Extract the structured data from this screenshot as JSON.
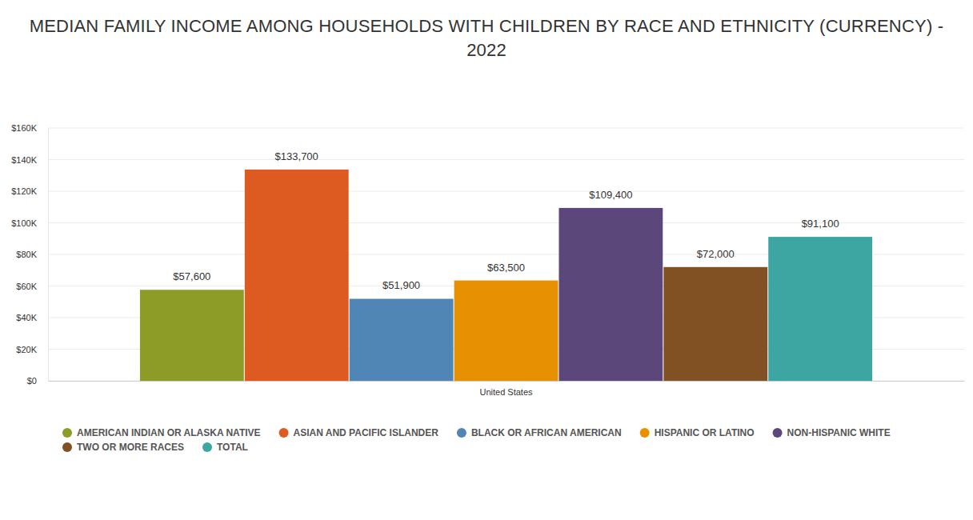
{
  "chart_data": {
    "type": "bar",
    "title": "MEDIAN FAMILY INCOME AMONG HOUSEHOLDS WITH CHILDREN BY RACE AND ETHNICITY (CURRENCY) - 2022",
    "categories": [
      "United States"
    ],
    "series": [
      {
        "name": "AMERICAN INDIAN OR ALASKA NATIVE",
        "color": "#8c9c26",
        "values": [
          57600
        ],
        "value_labels": [
          "$57,600"
        ]
      },
      {
        "name": "ASIAN AND PACIFIC ISLANDER",
        "color": "#dd5a21",
        "values": [
          133700
        ],
        "value_labels": [
          "$133,700"
        ]
      },
      {
        "name": "BLACK OR AFRICAN AMERICAN",
        "color": "#4f86b5",
        "values": [
          51900
        ],
        "value_labels": [
          "$51,900"
        ]
      },
      {
        "name": "HISPANIC OR LATINO",
        "color": "#e69002",
        "values": [
          63500
        ],
        "value_labels": [
          "$63,500"
        ]
      },
      {
        "name": "NON-HISPANIC WHITE",
        "color": "#5c477b",
        "values": [
          109400
        ],
        "value_labels": [
          "$109,400"
        ]
      },
      {
        "name": "TWO OR MORE RACES",
        "color": "#815124",
        "values": [
          72000
        ],
        "value_labels": [
          "$72,000"
        ]
      },
      {
        "name": "TOTAL",
        "color": "#3da6a3",
        "values": [
          91100
        ],
        "value_labels": [
          "$91,100"
        ]
      }
    ],
    "ylim": [
      0,
      160000
    ],
    "yticks": [
      {
        "value": 0,
        "label": "$0"
      },
      {
        "value": 20000,
        "label": "$20K"
      },
      {
        "value": 40000,
        "label": "$40K"
      },
      {
        "value": 60000,
        "label": "$60K"
      },
      {
        "value": 80000,
        "label": "$80K"
      },
      {
        "value": 100000,
        "label": "$100K"
      },
      {
        "value": 120000,
        "label": "$120K"
      },
      {
        "value": 140000,
        "label": "$140K"
      },
      {
        "value": 160000,
        "label": "$160K"
      }
    ],
    "grid": true,
    "data_labels": true,
    "legend": "bottom"
  }
}
